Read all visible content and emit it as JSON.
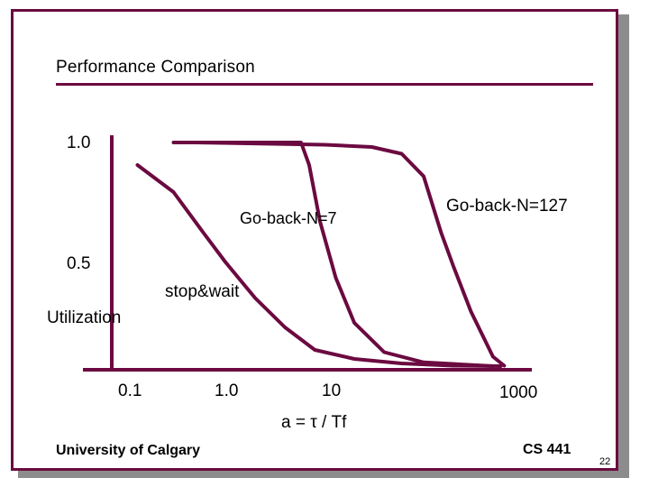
{
  "slide": {
    "title": "Performance Comparison",
    "footer_left": "University of Calgary",
    "footer_right": "CS 441",
    "page_number": "22",
    "colors": {
      "accent": "#6b0a40",
      "shadow": "#8c8c8c"
    }
  },
  "chart_data": {
    "type": "line",
    "title": "Performance Comparison",
    "xlabel": "a = τ / Tf",
    "ylabel": "Utilization",
    "xscale": "log",
    "xlim": [
      0.1,
      1000
    ],
    "ylim": [
      0,
      1.0
    ],
    "xticks": [
      "0.1",
      "1.0",
      "10",
      "1000"
    ],
    "yticks": [
      "1.0",
      "0.5"
    ],
    "series": [
      {
        "name": "stop&wait",
        "label": "stop&wait",
        "x": [
          0.13,
          0.3,
          0.6,
          1.0,
          2,
          4,
          8,
          20,
          60,
          200,
          600
        ],
        "y": [
          0.9,
          0.78,
          0.6,
          0.47,
          0.31,
          0.18,
          0.08,
          0.04,
          0.02,
          0.01,
          0.008
        ]
      },
      {
        "name": "Go-back-N=7",
        "label": "Go-back-N=7",
        "x": [
          0.3,
          1,
          3,
          5.8,
          7,
          9,
          13,
          20,
          40,
          100,
          500
        ],
        "y": [
          1.0,
          1.0,
          1.0,
          1.0,
          0.9,
          0.65,
          0.4,
          0.2,
          0.07,
          0.025,
          0.008
        ]
      },
      {
        "name": "Go-back-N=127",
        "label": "Go-back-N=127",
        "x": [
          0.5,
          10,
          30,
          60,
          100,
          150,
          200,
          300,
          500,
          650
        ],
        "y": [
          1.0,
          0.99,
          0.98,
          0.95,
          0.85,
          0.6,
          0.45,
          0.25,
          0.05,
          0.01
        ]
      }
    ]
  }
}
